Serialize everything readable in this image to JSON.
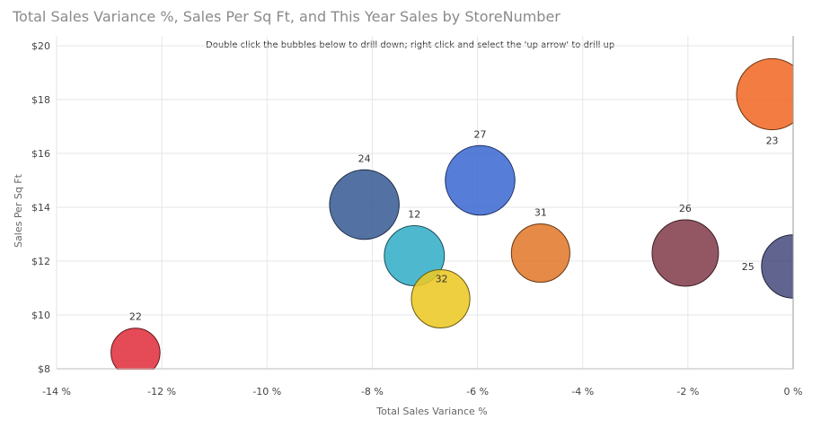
{
  "chart_data": {
    "type": "scatter",
    "title": "Total Sales Variance %, Sales Per Sq Ft, and This Year Sales by StoreNumber",
    "subtitle": "Double click the bubbles below to drill down; right click and select the 'up arrow' to drill up",
    "xlabel": "Total Sales Variance %",
    "ylabel": "Sales Per Sq Ft",
    "xlim": [
      -14,
      0
    ],
    "ylim": [
      8,
      20
    ],
    "x_ticks": [
      "-14 %",
      "-12 %",
      "-10 %",
      "-8 %",
      "-6 %",
      "-4 %",
      "-2 %",
      "0 %"
    ],
    "y_ticks": [
      "$8",
      "$10",
      "$12",
      "$14",
      "$16",
      "$18",
      "$20"
    ],
    "grid": true,
    "points": [
      {
        "label": "22",
        "x": -12.5,
        "y": 8.6,
        "size": 0.62,
        "color": "#e0323f"
      },
      {
        "label": "24",
        "x": -8.15,
        "y": 14.1,
        "size": 0.88,
        "color": "#3b5f96"
      },
      {
        "label": "12",
        "x": -7.2,
        "y": 12.2,
        "size": 0.76,
        "color": "#36afc7"
      },
      {
        "label": "32",
        "x": -6.7,
        "y": 10.6,
        "size": 0.74,
        "color": "#ecc824"
      },
      {
        "label": "27",
        "x": -5.95,
        "y": 15.0,
        "size": 0.88,
        "color": "#3f6bd1"
      },
      {
        "label": "31",
        "x": -4.8,
        "y": 12.3,
        "size": 0.74,
        "color": "#e27a2e"
      },
      {
        "label": "26",
        "x": -2.05,
        "y": 12.3,
        "size": 0.84,
        "color": "#84404f"
      },
      {
        "label": "25",
        "x": 0.0,
        "y": 11.8,
        "size": 0.8,
        "color": "#4b4f80"
      },
      {
        "label": "23",
        "x": -0.4,
        "y": 18.2,
        "size": 0.9,
        "color": "#f06a28"
      }
    ]
  }
}
